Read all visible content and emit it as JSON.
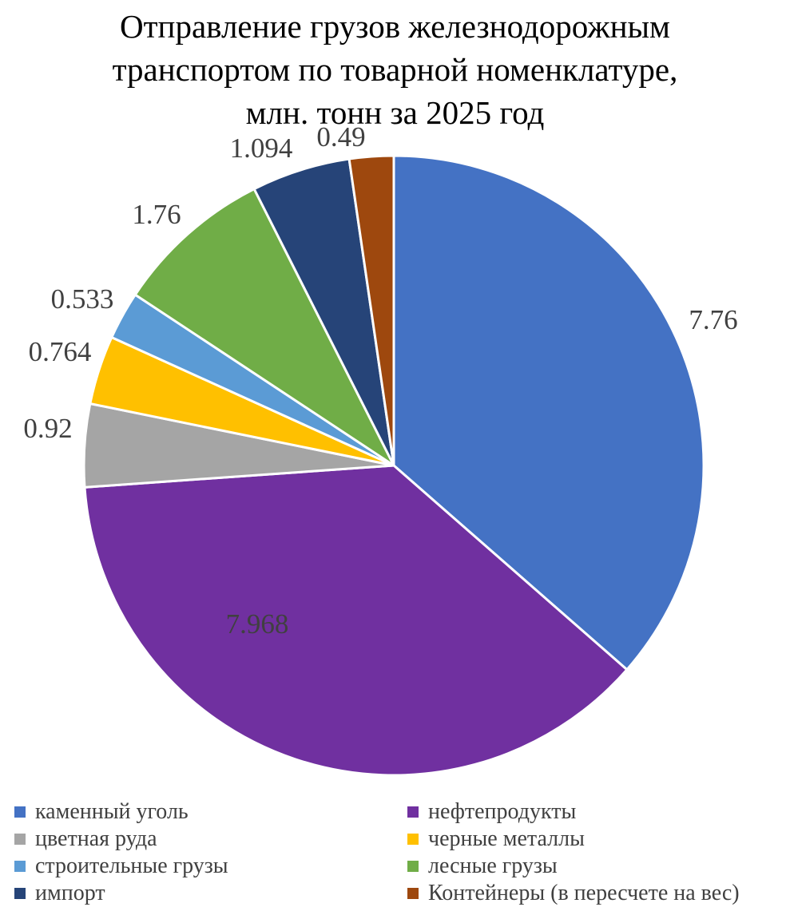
{
  "chart_data": {
    "type": "pie",
    "title": [
      "Отправление грузов железнодорожным",
      "транспортом по товарной номенклатуре,",
      "млн. тонн за 2025 год"
    ],
    "legend_position": "bottom",
    "slices": [
      {
        "label": "каменный уголь",
        "value": 7.76,
        "value_label": "7.76",
        "color": "#4472C4"
      },
      {
        "label": "нефтепродукты",
        "value": 7.968,
        "value_label": "7.968",
        "color": "#7030A0"
      },
      {
        "label": "цветная руда",
        "value": 0.92,
        "value_label": "0.92",
        "color": "#A5A5A5"
      },
      {
        "label": "черные металлы",
        "value": 0.764,
        "value_label": "0.764",
        "color": "#FFC000"
      },
      {
        "label": "строительные грузы",
        "value": 0.533,
        "value_label": "0.533",
        "color": "#5B9BD5"
      },
      {
        "label": "лесные грузы",
        "value": 1.76,
        "value_label": "1.76",
        "color": "#70AD47"
      },
      {
        "label": "импорт",
        "value": 1.094,
        "value_label": "1.094",
        "color": "#264478"
      },
      {
        "label": "Контейнеры (в пересчете на вес)",
        "value": 0.49,
        "value_label": "0.49",
        "color": "#9E480E"
      }
    ]
  }
}
